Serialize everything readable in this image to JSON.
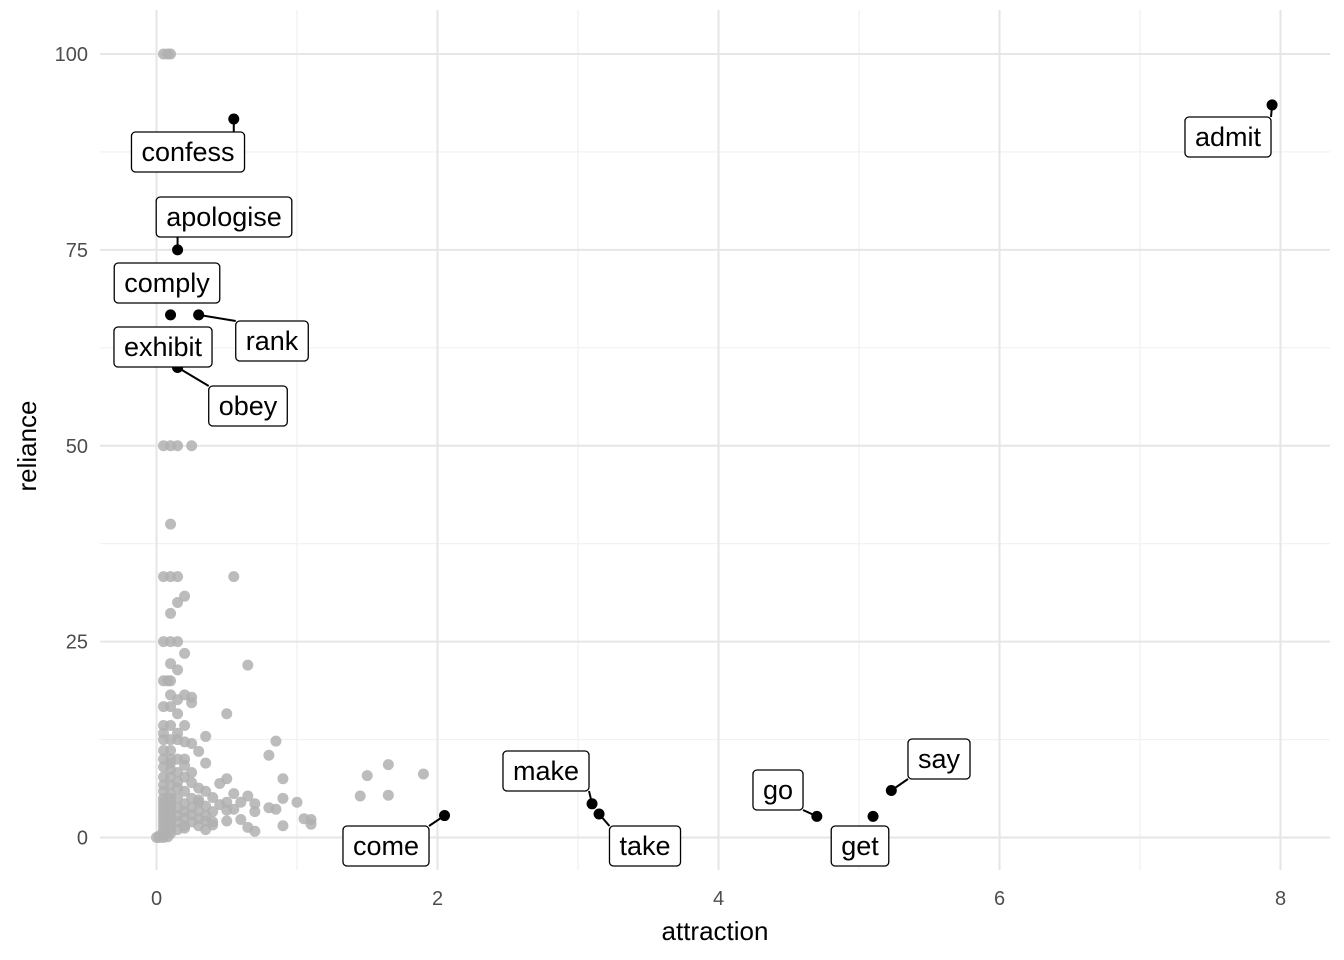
{
  "chart_data": {
    "type": "scatter",
    "xlabel": "attraction",
    "ylabel": "reliance",
    "xlim": [
      0,
      8
    ],
    "ylim": [
      0,
      100
    ],
    "x_ticks": [
      0,
      2,
      4,
      6,
      8
    ],
    "x_tick_labels": [
      "0",
      "2",
      "4",
      "6",
      "8"
    ],
    "y_ticks": [
      0,
      25,
      50,
      75,
      100
    ],
    "y_tick_labels": [
      "0",
      "25",
      "50",
      "75",
      "100"
    ],
    "grid": true,
    "colors": {
      "highlight": "#000000",
      "background_points": "#b0b0b0",
      "grid_major": "#e6e6e6",
      "grid_minor": "#f1f1f1"
    },
    "highlighted": [
      {
        "label": "admit",
        "x": 7.94,
        "y": 93.5
      },
      {
        "label": "confess",
        "x": 0.55,
        "y": 91.7
      },
      {
        "label": "apologise",
        "x": 0.15,
        "y": 75.0
      },
      {
        "label": "comply",
        "x": 0.1,
        "y": 66.7
      },
      {
        "label": "rank",
        "x": 0.3,
        "y": 66.7
      },
      {
        "label": "exhibit",
        "x": 0.15,
        "y": 60.0
      },
      {
        "label": "obey",
        "x": 0.15,
        "y": 60.0
      },
      {
        "label": "say",
        "x": 5.23,
        "y": 6.0
      },
      {
        "label": "make",
        "x": 3.1,
        "y": 4.3
      },
      {
        "label": "take",
        "x": 3.15,
        "y": 3.0
      },
      {
        "label": "come",
        "x": 2.05,
        "y": 2.8
      },
      {
        "label": "go",
        "x": 4.7,
        "y": 2.7
      },
      {
        "label": "get",
        "x": 5.1,
        "y": 2.7
      }
    ],
    "background_points": [
      [
        0.05,
        100
      ],
      [
        0.08,
        100
      ],
      [
        0.1,
        100
      ],
      [
        0.05,
        50
      ],
      [
        0.1,
        50
      ],
      [
        0.15,
        50
      ],
      [
        0.25,
        50
      ],
      [
        0.1,
        40
      ],
      [
        0.05,
        33.3
      ],
      [
        0.1,
        33.3
      ],
      [
        0.15,
        33.3
      ],
      [
        0.55,
        33.3
      ],
      [
        0.2,
        30.8
      ],
      [
        0.15,
        30
      ],
      [
        0.1,
        28.6
      ],
      [
        0.05,
        25
      ],
      [
        0.1,
        25
      ],
      [
        0.15,
        25
      ],
      [
        0.2,
        23.5
      ],
      [
        0.1,
        22.2
      ],
      [
        0.65,
        22
      ],
      [
        0.15,
        21.4
      ],
      [
        0.05,
        20
      ],
      [
        0.08,
        20
      ],
      [
        0.1,
        20
      ],
      [
        0.1,
        18.2
      ],
      [
        0.2,
        18.2
      ],
      [
        0.25,
        17.9
      ],
      [
        0.15,
        17.6
      ],
      [
        0.25,
        17.2
      ],
      [
        0.05,
        16.7
      ],
      [
        0.1,
        16.7
      ],
      [
        0.15,
        15.8
      ],
      [
        0.5,
        15.8
      ],
      [
        0.05,
        14.3
      ],
      [
        0.1,
        14.3
      ],
      [
        0.2,
        14.3
      ],
      [
        0.05,
        13.3
      ],
      [
        0.15,
        13.3
      ],
      [
        0.35,
        12.9
      ],
      [
        0.05,
        12.5
      ],
      [
        0.1,
        12.5
      ],
      [
        0.15,
        12.5
      ],
      [
        0.2,
        12.2
      ],
      [
        0.25,
        12
      ],
      [
        0.85,
        12.3
      ],
      [
        0.05,
        11.1
      ],
      [
        0.1,
        11.1
      ],
      [
        0.3,
        11
      ],
      [
        0.05,
        10
      ],
      [
        0.1,
        10
      ],
      [
        0.15,
        10
      ],
      [
        0.2,
        10
      ],
      [
        0.8,
        10.5
      ],
      [
        0.1,
        9.5
      ],
      [
        0.2,
        9.2
      ],
      [
        0.35,
        9.5
      ],
      [
        1.65,
        9.3
      ],
      [
        0.05,
        9
      ],
      [
        0.1,
        8.7
      ],
      [
        0.15,
        8.3
      ],
      [
        0.25,
        8.3
      ],
      [
        1.9,
        8.1
      ],
      [
        1.5,
        7.9
      ],
      [
        0.05,
        7.7
      ],
      [
        0.1,
        7.7
      ],
      [
        0.2,
        7.7
      ],
      [
        0.15,
        7.1
      ],
      [
        0.25,
        7
      ],
      [
        0.5,
        7.5
      ],
      [
        0.45,
        6.9
      ],
      [
        0.9,
        7.5
      ],
      [
        0.05,
        6.7
      ],
      [
        0.1,
        6.7
      ],
      [
        0.15,
        6.3
      ],
      [
        0.3,
        6.3
      ],
      [
        0.2,
        5.9
      ],
      [
        0.05,
        5.9
      ],
      [
        0.1,
        5.6
      ],
      [
        0.35,
        5.9
      ],
      [
        0.55,
        5.6
      ],
      [
        0.65,
        5.3
      ],
      [
        1.45,
        5.3
      ],
      [
        1.65,
        5.4
      ],
      [
        0.05,
        5
      ],
      [
        0.1,
        5
      ],
      [
        0.15,
        5
      ],
      [
        0.25,
        5
      ],
      [
        0.4,
        5.1
      ],
      [
        0.9,
        5
      ],
      [
        0.3,
        4.8
      ],
      [
        0.05,
        4.5
      ],
      [
        0.1,
        4.5
      ],
      [
        0.2,
        4.3
      ],
      [
        0.3,
        4.5
      ],
      [
        0.5,
        4.5
      ],
      [
        0.6,
        4.5
      ],
      [
        0.7,
        4.3
      ],
      [
        1.0,
        4.5
      ],
      [
        0.45,
        4.2
      ],
      [
        0.05,
        4
      ],
      [
        0.1,
        4
      ],
      [
        0.15,
        3.8
      ],
      [
        0.25,
        3.8
      ],
      [
        0.35,
        4
      ],
      [
        0.8,
        3.8
      ],
      [
        0.85,
        3.6
      ],
      [
        0.55,
        3.6
      ],
      [
        0.05,
        3.5
      ],
      [
        0.1,
        3.3
      ],
      [
        0.2,
        3.3
      ],
      [
        0.3,
        3.4
      ],
      [
        0.4,
        3.3
      ],
      [
        0.5,
        3.5
      ],
      [
        0.7,
        3.3
      ],
      [
        0.05,
        3
      ],
      [
        0.1,
        3
      ],
      [
        0.15,
        2.8
      ],
      [
        0.25,
        2.9
      ],
      [
        0.35,
        2.8
      ],
      [
        0.05,
        2.5
      ],
      [
        0.1,
        2.5
      ],
      [
        0.2,
        2.5
      ],
      [
        0.3,
        2.4
      ],
      [
        0.6,
        2.3
      ],
      [
        1.05,
        2.4
      ],
      [
        1.1,
        2.3
      ],
      [
        0.05,
        2
      ],
      [
        0.1,
        2
      ],
      [
        0.15,
        2
      ],
      [
        0.25,
        2
      ],
      [
        0.35,
        2.1
      ],
      [
        0.4,
        2
      ],
      [
        0.5,
        2.1
      ],
      [
        0.05,
        1.5
      ],
      [
        0.1,
        1.6
      ],
      [
        0.2,
        1.5
      ],
      [
        0.3,
        1.5
      ],
      [
        0.4,
        1.6
      ],
      [
        0.65,
        1.3
      ],
      [
        0.9,
        1.5
      ],
      [
        1.1,
        1.7
      ],
      [
        0.05,
        1
      ],
      [
        0.1,
        1
      ],
      [
        0.15,
        1
      ],
      [
        0.2,
        1.2
      ],
      [
        0.35,
        1
      ],
      [
        0.7,
        0.8
      ],
      [
        0.05,
        0.5
      ],
      [
        0.1,
        0.5
      ],
      [
        0.02,
        0.2
      ],
      [
        0.0,
        0
      ],
      [
        0.02,
        0
      ],
      [
        0.05,
        0
      ],
      [
        0.08,
        0.1
      ]
    ]
  }
}
